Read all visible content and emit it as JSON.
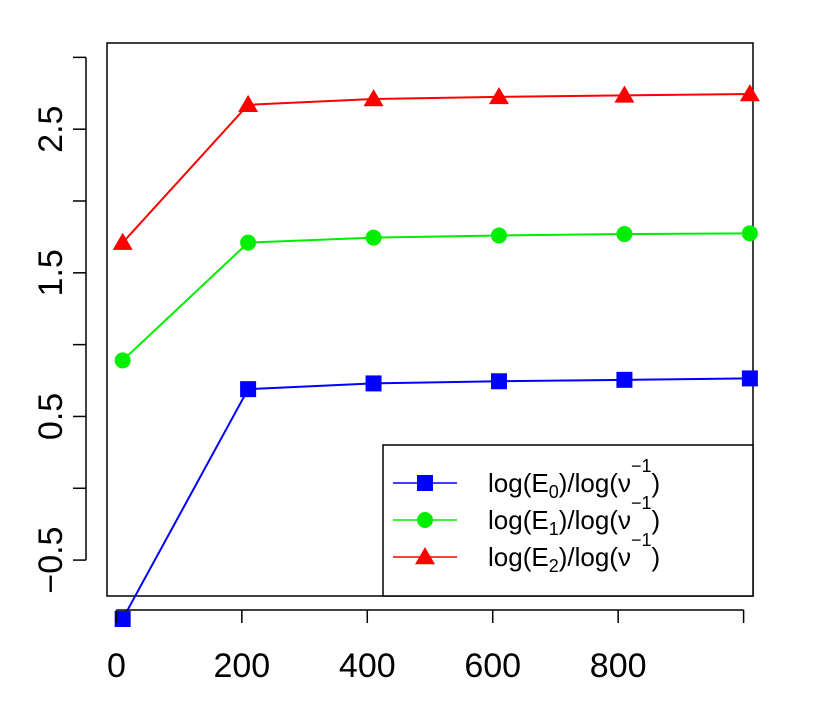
{
  "chart_data": {
    "type": "line",
    "title": "",
    "xlabel": "",
    "ylabel": "",
    "xlim": [
      -15,
      1015
    ],
    "ylim": [
      -0.75,
      3.1
    ],
    "grid": false,
    "legend_position": "bottom-right",
    "x_ticks": [
      {
        "value": 0,
        "label": "0"
      },
      {
        "value": 200,
        "label": "200"
      },
      {
        "value": 400,
        "label": "400"
      },
      {
        "value": 600,
        "label": "600"
      },
      {
        "value": 800,
        "label": "800"
      }
    ],
    "x_minor_ticks": [
      1000
    ],
    "y_ticks": [
      {
        "value": -0.5,
        "label": "−0.5"
      },
      {
        "value": 0.5,
        "label": "0.5"
      },
      {
        "value": 1.5,
        "label": "1.5"
      },
      {
        "value": 2.5,
        "label": "2.5"
      }
    ],
    "y_minor_ticks": [
      0.0,
      1.0,
      2.0,
      3.0
    ],
    "x": [
      10,
      210,
      410,
      610,
      810,
      1010
    ],
    "series": [
      {
        "name_main": "log(E",
        "name_sub": "0",
        "name_rest": ")/log(ν",
        "name_sup": "−1",
        "name_end": ")",
        "color": "#0000ff",
        "marker": "square",
        "values": [
          -0.91,
          0.69,
          0.73,
          0.745,
          0.755,
          0.765
        ]
      },
      {
        "name_main": "log(E",
        "name_sub": "1",
        "name_rest": ")/log(ν",
        "name_sup": "−1",
        "name_end": ")",
        "color": "#00ee00",
        "marker": "circle",
        "values": [
          0.89,
          1.71,
          1.745,
          1.76,
          1.77,
          1.775
        ]
      },
      {
        "name_main": "log(E",
        "name_sub": "2",
        "name_rest": ")/log(ν",
        "name_sup": "−1",
        "name_end": ")",
        "color": "#ff0000",
        "marker": "triangle",
        "values": [
          1.71,
          2.67,
          2.71,
          2.725,
          2.735,
          2.745
        ]
      }
    ]
  }
}
